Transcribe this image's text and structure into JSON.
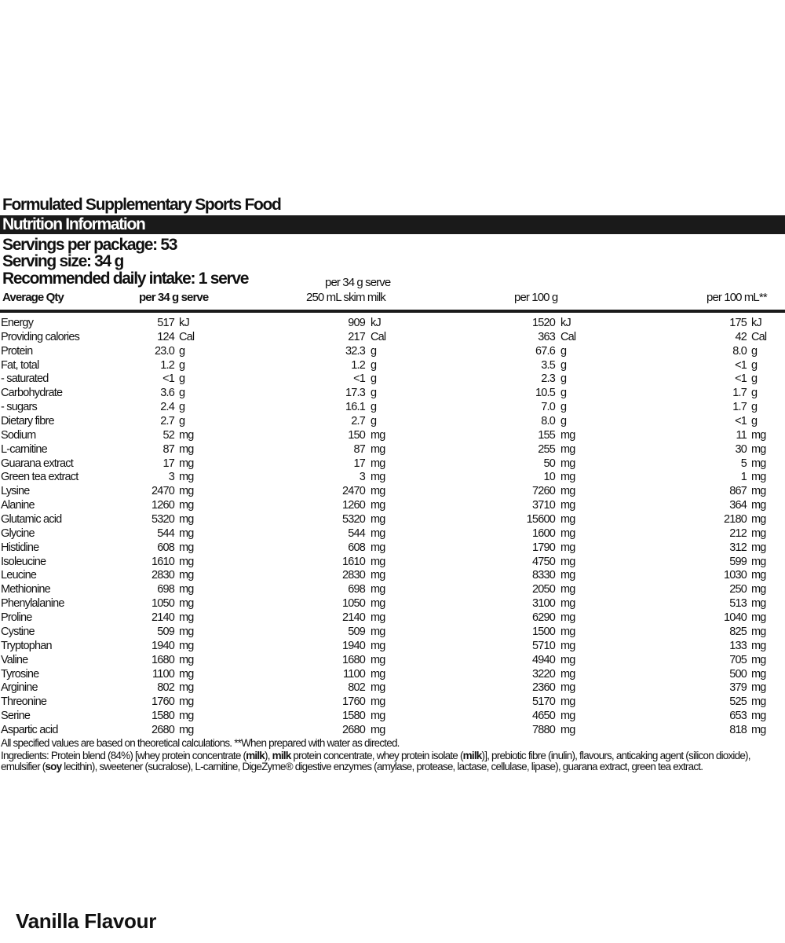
{
  "title": "Formulated Supplementary Sports Food",
  "section_heading": "Nutrition Information",
  "servings_per_package": "Servings per package: 53",
  "serving_size": "Serving size: 34 g",
  "recommended_intake": "Recommended daily intake: 1 serve",
  "columns": {
    "name": "Average Qty",
    "c1": "per 34 g serve",
    "c2_line1": "per 34 g serve",
    "c2_line2": "250 mL skim milk",
    "c3": "per 100 g",
    "c4": "per 100 mL**"
  },
  "rows": [
    [
      "Energy",
      "517",
      "kJ",
      "909",
      "kJ",
      "1520",
      "kJ",
      "175",
      "kJ"
    ],
    [
      "Providing calories",
      "124",
      "Cal",
      "217",
      "Cal",
      "363",
      "Cal",
      "42",
      "Cal"
    ],
    [
      "Protein",
      "23.0",
      "g",
      "32.3",
      "g",
      "67.6",
      "g",
      "8.0",
      "g"
    ],
    [
      "Fat, total",
      "1.2",
      "g",
      "1.2",
      "g",
      "3.5",
      "g",
      "<1",
      "g"
    ],
    [
      "- saturated",
      "<1",
      "g",
      "<1",
      "g",
      "2.3",
      "g",
      "<1",
      "g"
    ],
    [
      "Carbohydrate",
      "3.6",
      "g",
      "17.3",
      "g",
      "10.5",
      "g",
      "1.7",
      "g"
    ],
    [
      "- sugars",
      "2.4",
      "g",
      "16.1",
      "g",
      "7.0",
      "g",
      "1.7",
      "g"
    ],
    [
      "Dietary fibre",
      "2.7",
      "g",
      "2.7",
      "g",
      "8.0",
      "g",
      "<1",
      "g"
    ],
    [
      "Sodium",
      "52",
      "mg",
      "150",
      "mg",
      "155",
      "mg",
      "11",
      "mg"
    ],
    [
      "L-carnitine",
      "87",
      "mg",
      "87",
      "mg",
      "255",
      "mg",
      "30",
      "mg"
    ],
    [
      "Guarana extract",
      "17",
      "mg",
      "17",
      "mg",
      "50",
      "mg",
      "5",
      "mg"
    ],
    [
      "Green tea extract",
      "3",
      "mg",
      "3",
      "mg",
      "10",
      "mg",
      "1",
      "mg"
    ],
    [
      "Lysine",
      "2470",
      "mg",
      "2470",
      "mg",
      "7260",
      "mg",
      "867",
      "mg"
    ],
    [
      "Alanine",
      "1260",
      "mg",
      "1260",
      "mg",
      "3710",
      "mg",
      "364",
      "mg"
    ],
    [
      "Glutamic acid",
      "5320",
      "mg",
      "5320",
      "mg",
      "15600",
      "mg",
      "2180",
      "mg"
    ],
    [
      "Glycine",
      "544",
      "mg",
      "544",
      "mg",
      "1600",
      "mg",
      "212",
      "mg"
    ],
    [
      "Histidine",
      "608",
      "mg",
      "608",
      "mg",
      "1790",
      "mg",
      "312",
      "mg"
    ],
    [
      "Isoleucine",
      "1610",
      "mg",
      "1610",
      "mg",
      "4750",
      "mg",
      "599",
      "mg"
    ],
    [
      "Leucine",
      "2830",
      "mg",
      "2830",
      "mg",
      "8330",
      "mg",
      "1030",
      "mg"
    ],
    [
      "Methionine",
      "698",
      "mg",
      "698",
      "mg",
      "2050",
      "mg",
      "250",
      "mg"
    ],
    [
      "Phenylalanine",
      "1050",
      "mg",
      "1050",
      "mg",
      "3100",
      "mg",
      "513",
      "mg"
    ],
    [
      "Proline",
      "2140",
      "mg",
      "2140",
      "mg",
      "6290",
      "mg",
      "1040",
      "mg"
    ],
    [
      "Cystine",
      "509",
      "mg",
      "509",
      "mg",
      "1500",
      "mg",
      "825",
      "mg"
    ],
    [
      "Tryptophan",
      "1940",
      "mg",
      "1940",
      "mg",
      "5710",
      "mg",
      "133",
      "mg"
    ],
    [
      "Valine",
      "1680",
      "mg",
      "1680",
      "mg",
      "4940",
      "mg",
      "705",
      "mg"
    ],
    [
      "Tyrosine",
      "1100",
      "mg",
      "1100",
      "mg",
      "3220",
      "mg",
      "500",
      "mg"
    ],
    [
      "Arginine",
      "802",
      "mg",
      "802",
      "mg",
      "2360",
      "mg",
      "379",
      "mg"
    ],
    [
      "Threonine",
      "1760",
      "mg",
      "1760",
      "mg",
      "5170",
      "mg",
      "525",
      "mg"
    ],
    [
      "Serine",
      "1580",
      "mg",
      "1580",
      "mg",
      "4650",
      "mg",
      "653",
      "mg"
    ],
    [
      "Aspartic acid",
      "2680",
      "mg",
      "2680",
      "mg",
      "7880",
      "mg",
      "818",
      "mg"
    ]
  ],
  "footnote": "All specified values are based on theoretical calculations.   **When prepared with water as directed.",
  "ingredients": [
    {
      "t": "Ingredients: Protein blend (84%) [whey protein concentrate (",
      "b": false
    },
    {
      "t": "milk",
      "b": true
    },
    {
      "t": "), ",
      "b": false
    },
    {
      "t": "milk",
      "b": true
    },
    {
      "t": " protein concentrate, whey protein isolate (",
      "b": false
    },
    {
      "t": "milk",
      "b": true
    },
    {
      "t": ")], prebiotic fibre (inulin), flavours, anticaking agent (silicon dioxide), emulsifier (",
      "b": false
    },
    {
      "t": "soy",
      "b": true
    },
    {
      "t": " lecithin), sweetener (sucralose), L-carnitine, DigeZyme® digestive enzymes (amylase, protease, lactase, cellulase, lipase), guarana extract, green tea extract.",
      "b": false
    }
  ],
  "flavour": "Vanilla Flavour"
}
